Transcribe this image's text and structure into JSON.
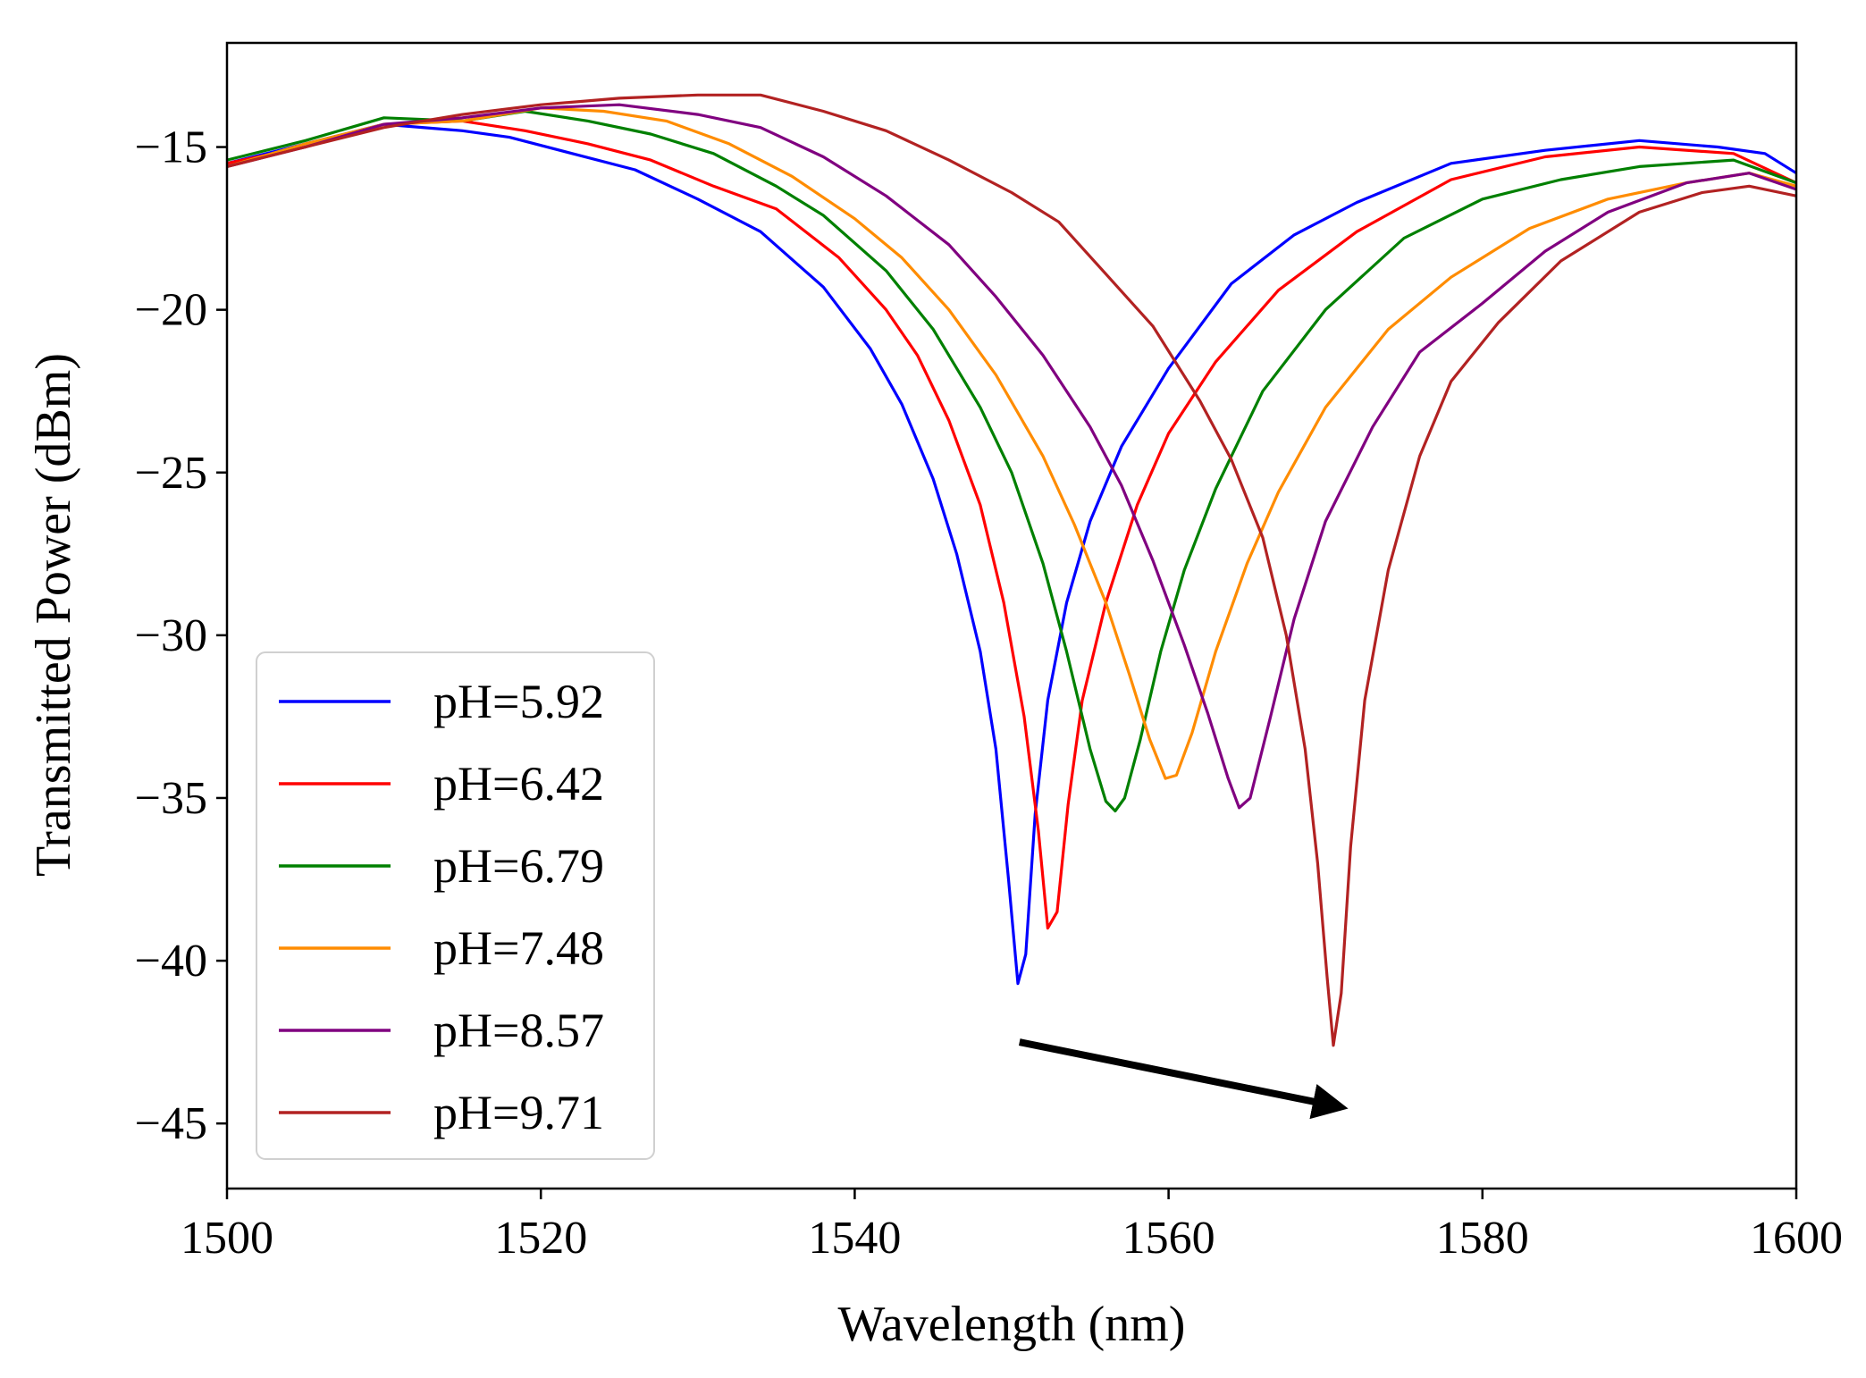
{
  "chart_data": {
    "type": "line",
    "title": "",
    "xlabel": "Wavelength (nm)",
    "ylabel": "Transmitted Power (dBm)",
    "xlim": [
      1500,
      1600
    ],
    "ylim": [
      -47,
      -11.8
    ],
    "x_ticks": [
      1500,
      1520,
      1540,
      1560,
      1580,
      1600
    ],
    "y_ticks": [
      -45,
      -40,
      -35,
      -30,
      -25,
      -20,
      -15
    ],
    "x_tick_labels": [
      "1500",
      "1520",
      "1540",
      "1560",
      "1580",
      "1600"
    ],
    "y_tick_labels": [
      "−45",
      "−40",
      "−35",
      "−30",
      "−25",
      "−20",
      "−15"
    ],
    "grid": false,
    "legend_position": "bottom-left",
    "annotation": {
      "type": "arrow",
      "from": [
        1550.5,
        -42.5
      ],
      "to": [
        1571,
        -44.5
      ],
      "meaning": "resonance dip shifts to longer wavelength with increasing pH"
    },
    "series": [
      {
        "name": "pH=5.92",
        "color": "#0000ff",
        "points": [
          [
            1500,
            -15.5
          ],
          [
            1505,
            -14.9
          ],
          [
            1510,
            -14.3
          ],
          [
            1515,
            -14.5
          ],
          [
            1518,
            -14.7
          ],
          [
            1522,
            -15.2
          ],
          [
            1526,
            -15.7
          ],
          [
            1530,
            -16.6
          ],
          [
            1534,
            -17.6
          ],
          [
            1538,
            -19.3
          ],
          [
            1541,
            -21.2
          ],
          [
            1543,
            -22.9
          ],
          [
            1545,
            -25.2
          ],
          [
            1546.5,
            -27.5
          ],
          [
            1548,
            -30.5
          ],
          [
            1549,
            -33.5
          ],
          [
            1549.8,
            -37.5
          ],
          [
            1550.4,
            -40.7
          ],
          [
            1550.9,
            -39.8
          ],
          [
            1551.5,
            -35.5
          ],
          [
            1552.3,
            -32.0
          ],
          [
            1553.5,
            -29.0
          ],
          [
            1555,
            -26.5
          ],
          [
            1557,
            -24.2
          ],
          [
            1560,
            -21.8
          ],
          [
            1564,
            -19.2
          ],
          [
            1568,
            -17.7
          ],
          [
            1572,
            -16.7
          ],
          [
            1578,
            -15.5
          ],
          [
            1584,
            -15.1
          ],
          [
            1590,
            -14.8
          ],
          [
            1595,
            -15.0
          ],
          [
            1598,
            -15.2
          ],
          [
            1600,
            -15.8
          ]
        ]
      },
      {
        "name": "pH=6.42",
        "color": "#ff0000",
        "points": [
          [
            1500,
            -15.5
          ],
          [
            1505,
            -15.0
          ],
          [
            1510,
            -14.3
          ],
          [
            1515,
            -14.2
          ],
          [
            1519,
            -14.5
          ],
          [
            1523,
            -14.9
          ],
          [
            1527,
            -15.4
          ],
          [
            1531,
            -16.2
          ],
          [
            1535,
            -16.9
          ],
          [
            1539,
            -18.4
          ],
          [
            1542,
            -20.0
          ],
          [
            1544,
            -21.4
          ],
          [
            1546,
            -23.4
          ],
          [
            1548,
            -26.0
          ],
          [
            1549.5,
            -29.0
          ],
          [
            1550.8,
            -32.5
          ],
          [
            1551.7,
            -36.0
          ],
          [
            1552.3,
            -39.0
          ],
          [
            1552.9,
            -38.5
          ],
          [
            1553.6,
            -35.2
          ],
          [
            1554.5,
            -32.0
          ],
          [
            1556,
            -29.0
          ],
          [
            1558,
            -26.0
          ],
          [
            1560,
            -23.8
          ],
          [
            1563,
            -21.6
          ],
          [
            1567,
            -19.4
          ],
          [
            1572,
            -17.6
          ],
          [
            1578,
            -16.0
          ],
          [
            1584,
            -15.3
          ],
          [
            1590,
            -15.0
          ],
          [
            1596,
            -15.2
          ],
          [
            1600,
            -16.1
          ]
        ]
      },
      {
        "name": "pH=6.79",
        "color": "#008000",
        "points": [
          [
            1500,
            -15.4
          ],
          [
            1505,
            -14.8
          ],
          [
            1510,
            -14.1
          ],
          [
            1515,
            -14.2
          ],
          [
            1519,
            -13.9
          ],
          [
            1523,
            -14.2
          ],
          [
            1527,
            -14.6
          ],
          [
            1531,
            -15.2
          ],
          [
            1535,
            -16.2
          ],
          [
            1538,
            -17.1
          ],
          [
            1542,
            -18.8
          ],
          [
            1545,
            -20.6
          ],
          [
            1548,
            -23.0
          ],
          [
            1550,
            -25.0
          ],
          [
            1552,
            -27.8
          ],
          [
            1553.5,
            -30.5
          ],
          [
            1555,
            -33.5
          ],
          [
            1556,
            -35.1
          ],
          [
            1556.6,
            -35.4
          ],
          [
            1557.2,
            -35.0
          ],
          [
            1558.2,
            -33.2
          ],
          [
            1559.5,
            -30.5
          ],
          [
            1561,
            -28.0
          ],
          [
            1563,
            -25.5
          ],
          [
            1566,
            -22.5
          ],
          [
            1570,
            -20.0
          ],
          [
            1575,
            -17.8
          ],
          [
            1580,
            -16.6
          ],
          [
            1585,
            -16.0
          ],
          [
            1590,
            -15.6
          ],
          [
            1596,
            -15.4
          ],
          [
            1600,
            -16.1
          ]
        ]
      },
      {
        "name": "pH=7.48",
        "color": "#ff8c00",
        "points": [
          [
            1500,
            -15.6
          ],
          [
            1505,
            -14.9
          ],
          [
            1510,
            -14.3
          ],
          [
            1515,
            -14.2
          ],
          [
            1520,
            -13.8
          ],
          [
            1524,
            -13.9
          ],
          [
            1528,
            -14.2
          ],
          [
            1532,
            -14.9
          ],
          [
            1536,
            -15.9
          ],
          [
            1540,
            -17.2
          ],
          [
            1543,
            -18.4
          ],
          [
            1546,
            -20.0
          ],
          [
            1549,
            -22.0
          ],
          [
            1552,
            -24.5
          ],
          [
            1554,
            -26.6
          ],
          [
            1556,
            -29.0
          ],
          [
            1557.5,
            -31.2
          ],
          [
            1558.8,
            -33.2
          ],
          [
            1559.8,
            -34.4
          ],
          [
            1560.5,
            -34.3
          ],
          [
            1561.5,
            -33.0
          ],
          [
            1563,
            -30.5
          ],
          [
            1565,
            -27.8
          ],
          [
            1567,
            -25.6
          ],
          [
            1570,
            -23.0
          ],
          [
            1574,
            -20.6
          ],
          [
            1578,
            -19.0
          ],
          [
            1583,
            -17.5
          ],
          [
            1588,
            -16.6
          ],
          [
            1593,
            -16.1
          ],
          [
            1597,
            -15.8
          ],
          [
            1600,
            -16.2
          ]
        ]
      },
      {
        "name": "pH=8.57",
        "color": "#800080",
        "points": [
          [
            1500,
            -15.6
          ],
          [
            1505,
            -15.0
          ],
          [
            1510,
            -14.3
          ],
          [
            1515,
            -14.1
          ],
          [
            1520,
            -13.8
          ],
          [
            1525,
            -13.7
          ],
          [
            1530,
            -14.0
          ],
          [
            1534,
            -14.4
          ],
          [
            1538,
            -15.3
          ],
          [
            1542,
            -16.5
          ],
          [
            1546,
            -18.0
          ],
          [
            1549,
            -19.6
          ],
          [
            1552,
            -21.4
          ],
          [
            1555,
            -23.6
          ],
          [
            1557,
            -25.4
          ],
          [
            1559,
            -27.7
          ],
          [
            1561,
            -30.3
          ],
          [
            1562.5,
            -32.4
          ],
          [
            1563.8,
            -34.4
          ],
          [
            1564.5,
            -35.3
          ],
          [
            1565.2,
            -35.0
          ],
          [
            1566.5,
            -32.5
          ],
          [
            1568,
            -29.5
          ],
          [
            1570,
            -26.5
          ],
          [
            1573,
            -23.6
          ],
          [
            1576,
            -21.3
          ],
          [
            1580,
            -19.8
          ],
          [
            1584,
            -18.2
          ],
          [
            1588,
            -17.0
          ],
          [
            1593,
            -16.1
          ],
          [
            1597,
            -15.8
          ],
          [
            1600,
            -16.3
          ]
        ]
      },
      {
        "name": "pH=9.71",
        "color": "#b22222",
        "points": [
          [
            1500,
            -15.6
          ],
          [
            1505,
            -15.0
          ],
          [
            1510,
            -14.4
          ],
          [
            1515,
            -14.0
          ],
          [
            1520,
            -13.7
          ],
          [
            1525,
            -13.5
          ],
          [
            1530,
            -13.4
          ],
          [
            1534,
            -13.4
          ],
          [
            1538,
            -13.9
          ],
          [
            1542,
            -14.5
          ],
          [
            1546,
            -15.4
          ],
          [
            1550,
            -16.4
          ],
          [
            1553,
            -17.3
          ],
          [
            1556,
            -18.9
          ],
          [
            1559,
            -20.5
          ],
          [
            1562,
            -22.8
          ],
          [
            1564,
            -24.6
          ],
          [
            1566,
            -27.0
          ],
          [
            1567.5,
            -30.0
          ],
          [
            1568.7,
            -33.5
          ],
          [
            1569.5,
            -37.0
          ],
          [
            1570.1,
            -40.5
          ],
          [
            1570.5,
            -42.6
          ],
          [
            1571,
            -41.0
          ],
          [
            1571.6,
            -36.5
          ],
          [
            1572.5,
            -32.0
          ],
          [
            1574,
            -28.0
          ],
          [
            1576,
            -24.5
          ],
          [
            1578,
            -22.2
          ],
          [
            1581,
            -20.4
          ],
          [
            1585,
            -18.5
          ],
          [
            1590,
            -17.0
          ],
          [
            1594,
            -16.4
          ],
          [
            1597,
            -16.2
          ],
          [
            1600,
            -16.5
          ]
        ]
      }
    ]
  }
}
